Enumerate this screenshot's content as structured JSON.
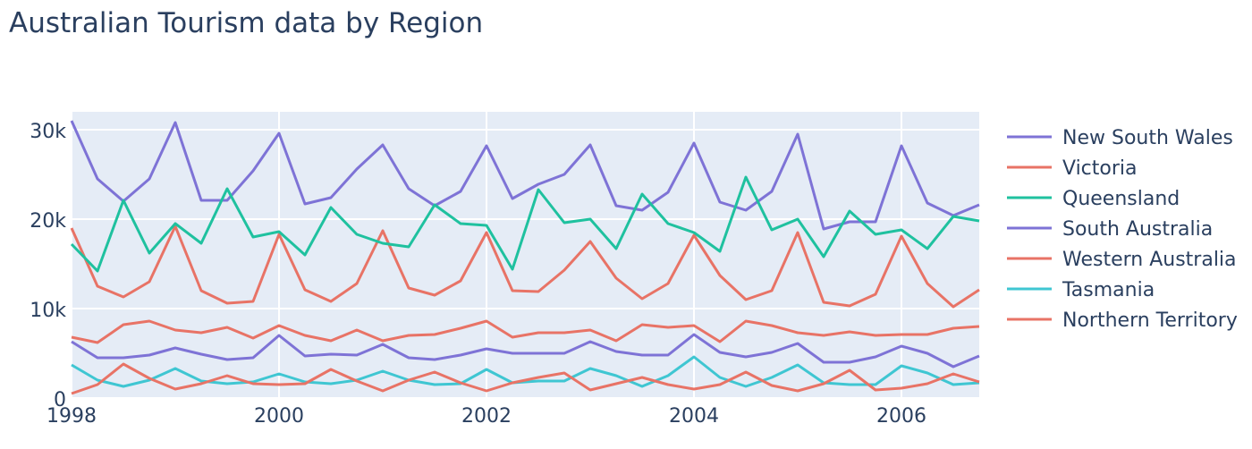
{
  "chart_data": {
    "type": "line",
    "title": "Australian Tourism data by Region",
    "xlabel": "",
    "ylabel": "",
    "x_start": "1998-01-01",
    "x_step_months": 3,
    "xlim": [
      "1998-01-01",
      "2006-10-01"
    ],
    "ylim": [
      0,
      32000
    ],
    "x_ticks": [
      "1998",
      "2000",
      "2002",
      "2004",
      "2006"
    ],
    "y_ticks": [
      "0",
      "10k",
      "20k",
      "30k"
    ],
    "legend_position": "right",
    "grid": true,
    "background": "#e5ecf6",
    "series": [
      {
        "name": "New South Wales",
        "color": "#7e73d6",
        "values": [
          31000,
          24500,
          22000,
          24500,
          30800,
          22100,
          22100,
          25400,
          29600,
          21700,
          22400,
          25600,
          28300,
          23400,
          21500,
          23100,
          28200,
          22300,
          23900,
          25000,
          28300,
          21500,
          21000,
          23000,
          28500,
          21900,
          21000,
          23100,
          29500,
          18900,
          19700,
          19700,
          28200,
          21800,
          20400,
          21600
        ]
      },
      {
        "name": "Victoria",
        "color": "#e87366",
        "values": [
          19000,
          12500,
          11300,
          13000,
          19200,
          12000,
          10600,
          10800,
          18300,
          12100,
          10800,
          12800,
          18700,
          12300,
          11500,
          13100,
          18500,
          12000,
          11900,
          14300,
          17500,
          13400,
          11100,
          12800,
          18200,
          13700,
          11000,
          12000,
          18500,
          10700,
          10300,
          11600,
          18100,
          12800,
          10200,
          12100
        ]
      },
      {
        "name": "Queensland",
        "color": "#1fc19f",
        "values": [
          17200,
          14200,
          22100,
          16200,
          19500,
          17300,
          23400,
          18000,
          18600,
          16000,
          21300,
          18300,
          17300,
          16900,
          21600,
          19500,
          19300,
          14400,
          23300,
          19600,
          20000,
          16700,
          22800,
          19500,
          18500,
          16400,
          24700,
          18800,
          20000,
          15800,
          20900,
          18300,
          18800,
          16700,
          20300,
          19800
        ]
      },
      {
        "name": "South Australia",
        "color": "#7e73d6",
        "values": [
          6300,
          4500,
          4500,
          4800,
          5600,
          4900,
          4300,
          4500,
          7000,
          4700,
          4900,
          4800,
          6000,
          4500,
          4300,
          4800,
          5500,
          5000,
          5000,
          5000,
          6300,
          5200,
          4800,
          4800,
          7100,
          5100,
          4600,
          5100,
          6100,
          4000,
          4000,
          4600,
          5800,
          5000,
          3500,
          4700
        ]
      },
      {
        "name": "Western Australia",
        "color": "#e87366",
        "values": [
          6800,
          6200,
          8200,
          8600,
          7600,
          7300,
          7900,
          6700,
          8100,
          7000,
          6400,
          7600,
          6400,
          7000,
          7100,
          7800,
          8600,
          6800,
          7300,
          7300,
          7600,
          6400,
          8200,
          7900,
          8100,
          6300,
          8600,
          8100,
          7300,
          7000,
          7400,
          7000,
          7100,
          7100,
          7800,
          8000
        ]
      },
      {
        "name": "Tasmania",
        "color": "#3fc6d2",
        "values": [
          3700,
          2000,
          1300,
          2000,
          3300,
          1900,
          1600,
          1800,
          2700,
          1800,
          1600,
          2000,
          3000,
          2000,
          1500,
          1600,
          3200,
          1700,
          1900,
          1900,
          3300,
          2500,
          1300,
          2500,
          4600,
          2300,
          1300,
          2300,
          3700,
          1700,
          1500,
          1500,
          3600,
          2800,
          1500,
          1700
        ]
      },
      {
        "name": "Northern Territory",
        "color": "#e87366",
        "values": [
          500,
          1500,
          3800,
          2200,
          1000,
          1600,
          2500,
          1600,
          1500,
          1600,
          3200,
          1900,
          800,
          2000,
          2900,
          1700,
          800,
          1700,
          2300,
          2800,
          900,
          1600,
          2300,
          1500,
          1000,
          1500,
          2900,
          1400,
          800,
          1600,
          3100,
          900,
          1100,
          1600,
          2700,
          1800
        ]
      }
    ]
  }
}
